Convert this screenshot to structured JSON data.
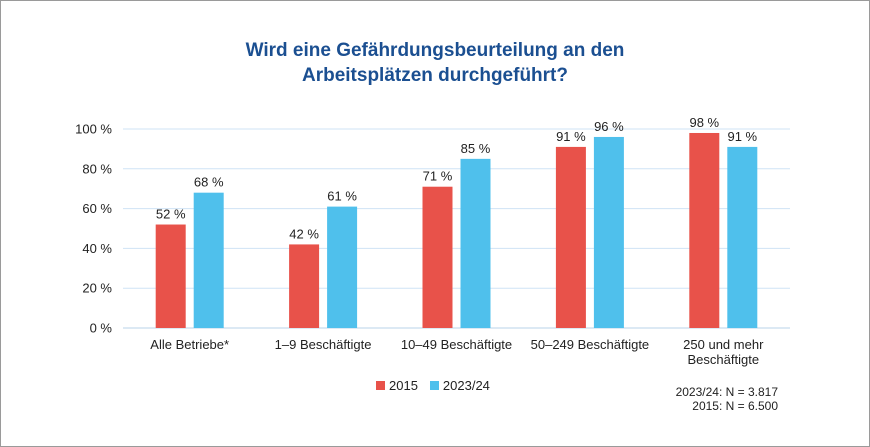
{
  "title_lines": [
    "Wird eine Gefährdungsbeurteilung an den",
    "Arbeitsplätzen durchgeführt?"
  ],
  "colors": {
    "s2015": "#e8524a",
    "s2023": "#4fc0ec",
    "title": "#1b4f91",
    "grid": "#cfe3f5"
  },
  "notes": [
    "2023/24: N = 3.817",
    "2015: N = 6.500"
  ],
  "chart_data": {
    "type": "bar",
    "title": "Wird eine Gefährdungsbeurteilung an den Arbeitsplätzen durchgeführt?",
    "categories": [
      [
        "Alle Betriebe*"
      ],
      [
        "1–9 Beschäftigte"
      ],
      [
        "10–49 Beschäftigte"
      ],
      [
        "50–249 Beschäftigte"
      ],
      [
        "250 und mehr",
        "Beschäftigte"
      ]
    ],
    "series": [
      {
        "name": "2015",
        "values": [
          52,
          42,
          71,
          91,
          98
        ],
        "labels": [
          "52 %",
          "42 %",
          "71 %",
          "91 %",
          "98 %"
        ]
      },
      {
        "name": "2023/24",
        "values": [
          68,
          61,
          85,
          96,
          91
        ],
        "labels": [
          "68 %",
          "61 %",
          "85 %",
          "96 %",
          "91 %"
        ]
      }
    ],
    "ylim": [
      0,
      100
    ],
    "yticks": [
      "0 %",
      "20 %",
      "40 %",
      "60 %",
      "80 %",
      "100 %"
    ],
    "grid": true,
    "legend": "bottom-center"
  }
}
